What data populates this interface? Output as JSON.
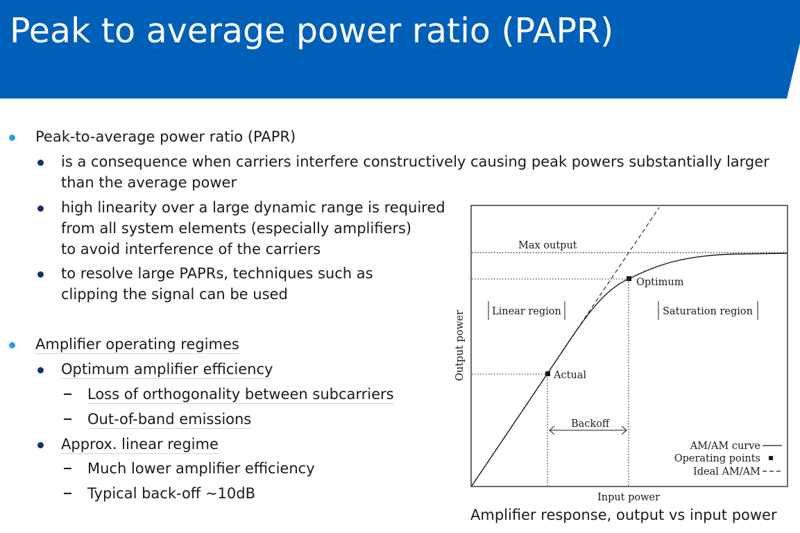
{
  "slide": {
    "title": "Peak to average power ratio (PAPR)"
  },
  "bullets": {
    "papr": {
      "label": "Peak-to-average power ratio (PAPR)",
      "sub1_line1": "is a consequence when carriers interfere constructively causing peak powers substantially larger",
      "sub1_line2": "than the average power",
      "sub2_line1": "high linearity over a large dynamic range is required",
      "sub2_line2": "from all system elements (especially amplifiers)",
      "sub2_line3": "to avoid interference of the carriers",
      "sub3_line1": "to resolve large PAPRs, techniques such as",
      "sub3_line2": "clipping the signal can be used"
    },
    "regimes": {
      "label": "Amplifier operating regimes",
      "optimum": "Optimum amplifier efficiency",
      "optimum_items": [
        "Loss of orthogonality between subcarriers",
        "Out-of-band emissions"
      ],
      "linear": "Approx. linear regime",
      "linear_items": [
        "Much lower amplifier efficiency",
        "Typical back-off ~10dB"
      ]
    }
  },
  "diagram": {
    "max_output": "Max output",
    "optimum": "Optimum",
    "actual": "Actual",
    "backoff": "Backoff",
    "linear_region": "Linear region",
    "saturation_region": "Saturation region",
    "y_axis": "Output power",
    "x_axis": "Input power",
    "legend": {
      "curve": "AM/AM curve",
      "points": "Operating points",
      "ideal": "Ideal AM/AM"
    },
    "caption": "Amplifier response, output vs input power"
  },
  "colors": {
    "title_bar": "#0060b8",
    "bullet_l1": "#2aa0e0",
    "bullet_l2": "#1a2e6e"
  }
}
